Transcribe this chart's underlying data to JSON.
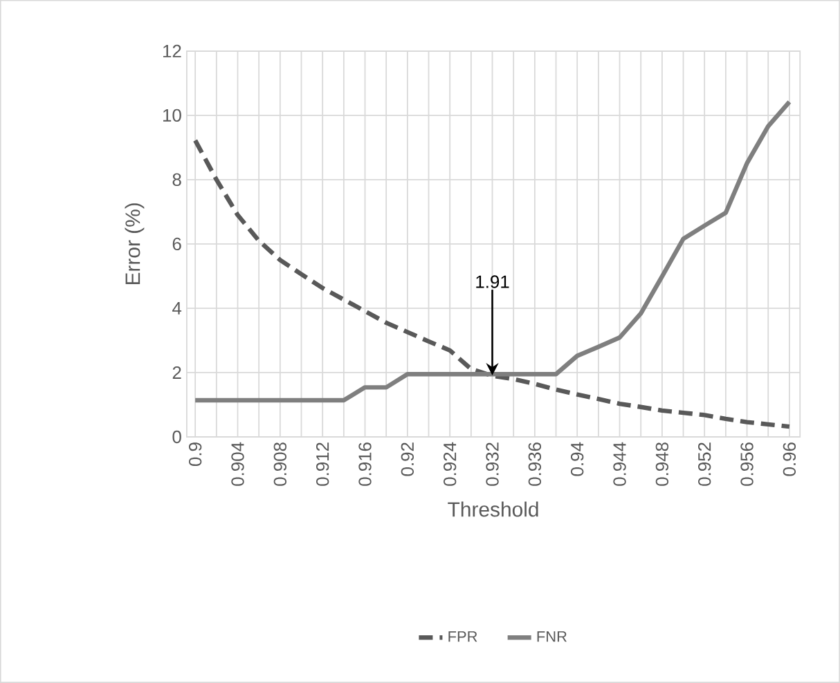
{
  "chart_data": {
    "type": "line",
    "xlabel": "Threshold",
    "ylabel": "Error (%)",
    "categories": [
      "0.9",
      null,
      "0.904",
      null,
      "0.908",
      null,
      "0.912",
      null,
      "0.916",
      null,
      "0.92",
      null,
      "0.924",
      null,
      "0.932",
      null,
      "0.936",
      null,
      "0.94",
      null,
      "0.944",
      null,
      "0.948",
      null,
      "0.952",
      null,
      "0.956",
      null,
      "0.96"
    ],
    "series": [
      {
        "name": "FPR",
        "color": "#595959",
        "line_style": "dashed",
        "values": [
          9.22,
          8.0,
          6.9,
          6.1,
          5.5,
          5.06,
          4.63,
          4.27,
          3.91,
          3.55,
          3.26,
          2.97,
          2.69,
          2.11,
          1.9,
          1.8,
          1.65,
          1.47,
          1.32,
          1.18,
          1.03,
          0.93,
          0.82,
          0.75,
          0.68,
          0.56,
          0.46,
          0.39,
          0.32
        ]
      },
      {
        "name": "FNR",
        "color": "#7f7f7f",
        "line_style": "solid",
        "values": [
          1.14,
          1.14,
          1.14,
          1.14,
          1.14,
          1.14,
          1.14,
          1.14,
          1.54,
          1.54,
          1.95,
          1.95,
          1.95,
          1.95,
          1.95,
          1.95,
          1.95,
          1.95,
          2.52,
          2.8,
          3.09,
          3.84,
          4.99,
          6.16,
          6.57,
          6.97,
          8.51,
          9.66,
          10.42
        ]
      }
    ],
    "ylim": [
      0,
      12
    ],
    "yticks": [
      0,
      2,
      4,
      6,
      8,
      10,
      12
    ],
    "grid": true,
    "legend": "bottom",
    "marker": "none",
    "annotations": [
      {
        "text": "1.91",
        "x": "0.932",
        "y": 1.91
      }
    ]
  }
}
